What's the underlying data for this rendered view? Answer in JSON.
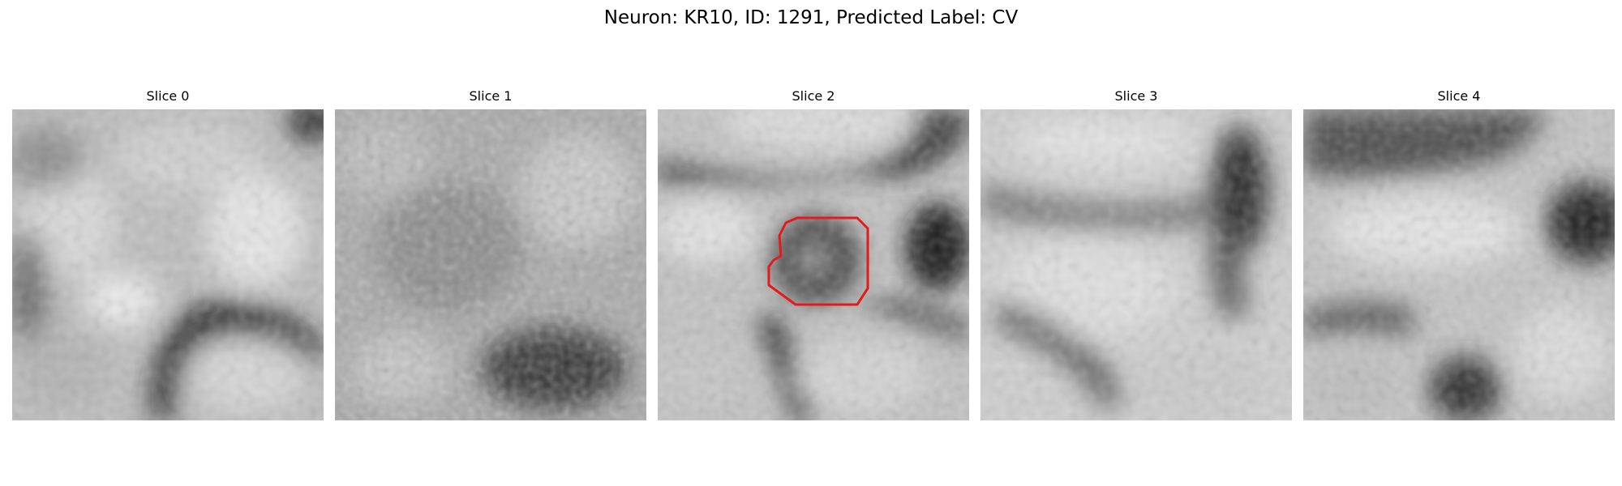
{
  "figure": {
    "title": "Neuron: KR10, ID: 1291, Predicted Label: CV",
    "colormap": "gray",
    "outline_color": "#e41a1c",
    "outline_on_slice": 2
  },
  "panels": [
    {
      "title": "Slice 0"
    },
    {
      "title": "Slice 1"
    },
    {
      "title": "Slice 2"
    },
    {
      "title": "Slice 3"
    },
    {
      "title": "Slice 4"
    }
  ]
}
